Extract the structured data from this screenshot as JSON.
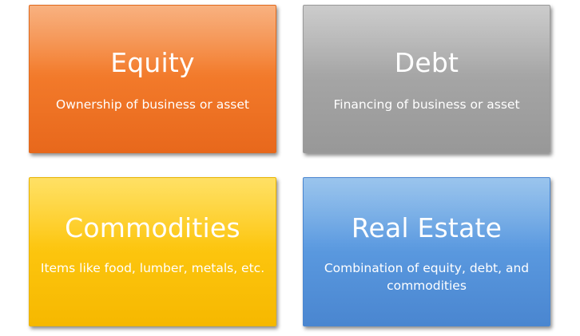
{
  "tiles": [
    {
      "title": "Equity",
      "description": "Ownership of business or asset",
      "color": "#f37b2b"
    },
    {
      "title": "Debt",
      "description": "Financing of business or asset",
      "color": "#a6a6a6"
    },
    {
      "title": "Commodities",
      "description": "Items like food, lumber, metals, etc.",
      "color": "#fdc60f"
    },
    {
      "title": "Real Estate",
      "description": "Combination of equity, debt, and commodities",
      "color": "#5b9ae0"
    }
  ]
}
